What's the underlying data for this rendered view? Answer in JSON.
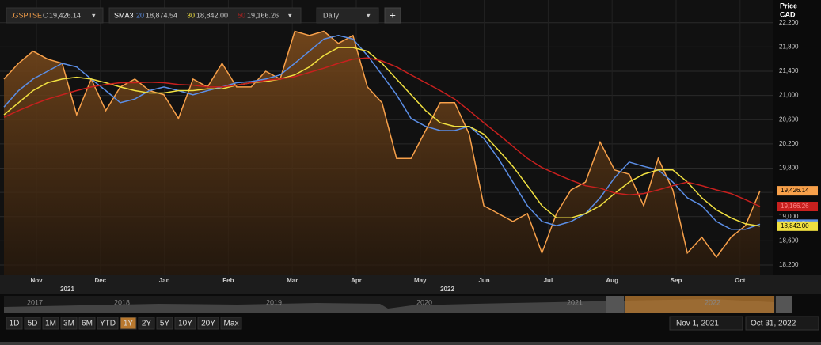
{
  "toolbar": {
    "symbol": ".GSPTSE",
    "price_code": "C",
    "price": "19,426.14",
    "study": "SMA3",
    "interval": "Daily",
    "add": "+"
  },
  "chart_data": {
    "type": "line",
    "y_axis_title": [
      "Price",
      "CAD"
    ],
    "months": [
      "Nov",
      "Dec",
      "Jan",
      "Feb",
      "Mar",
      "Apr",
      "May",
      "Jun",
      "Jul",
      "Aug",
      "Sep",
      "Oct"
    ],
    "years": [
      "2021",
      "2022"
    ],
    "ylim": [
      18030,
      22510
    ],
    "yticks": [
      {
        "value": 18200,
        "label": "18,200"
      },
      {
        "value": 18600,
        "label": "18,600"
      },
      {
        "value": 19000,
        "label": "19,000"
      },
      {
        "value": 19400,
        "label": "19,400"
      },
      {
        "value": 19800,
        "label": "19,800"
      },
      {
        "value": 20200,
        "label": "20,200"
      },
      {
        "value": 20600,
        "label": "20,600"
      },
      {
        "value": 21000,
        "label": "21,000"
      },
      {
        "value": 21400,
        "label": "21,400"
      },
      {
        "value": 21800,
        "label": "21,800"
      },
      {
        "value": 22200,
        "label": "22,200"
      }
    ],
    "series": [
      {
        "name": ".GSPTSE",
        "color": "#f7a04a",
        "area": true,
        "legend_value": "19,426.14",
        "values": [
          21270,
          21530,
          21730,
          21600,
          21530,
          20680,
          21270,
          20750,
          21140,
          21270,
          21080,
          21010,
          20620,
          21270,
          21140,
          21530,
          21140,
          21140,
          21400,
          21270,
          22060,
          21990,
          22060,
          21860,
          21990,
          21140,
          20880,
          19960,
          19960,
          20420,
          20880,
          20880,
          20360,
          19180,
          19050,
          18920,
          19050,
          18400,
          19050,
          19440,
          19570,
          20230,
          19770,
          19700,
          19180,
          19960,
          19440,
          18400,
          18660,
          18330,
          18660,
          18850,
          19426.14
        ]
      },
      {
        "name": "20",
        "color": "#5b8ee6",
        "legend_value": "18,874.54",
        "values": [
          20810,
          21080,
          21270,
          21400,
          21530,
          21470,
          21270,
          21080,
          20880,
          20940,
          21080,
          21140,
          21080,
          21010,
          21080,
          21140,
          21210,
          21230,
          21270,
          21340,
          21530,
          21730,
          21930,
          21990,
          21930,
          21660,
          21340,
          21010,
          20620,
          20490,
          20420,
          20420,
          20490,
          20290,
          19960,
          19570,
          19180,
          18920,
          18850,
          18920,
          19050,
          19310,
          19640,
          19900,
          19830,
          19770,
          19570,
          19310,
          19180,
          18920,
          18790,
          18790,
          18874.54
        ]
      },
      {
        "name": "30",
        "color": "#f0e040",
        "legend_value": "18,842.00",
        "values": [
          20680,
          20880,
          21080,
          21210,
          21270,
          21300,
          21270,
          21210,
          21140,
          21080,
          21040,
          21040,
          21080,
          21080,
          21110,
          21110,
          21170,
          21210,
          21230,
          21270,
          21340,
          21470,
          21660,
          21790,
          21790,
          21730,
          21530,
          21270,
          21010,
          20750,
          20550,
          20490,
          20490,
          20360,
          20100,
          19830,
          19510,
          19180,
          18980,
          18980,
          19050,
          19180,
          19380,
          19570,
          19700,
          19770,
          19770,
          19570,
          19310,
          19110,
          18980,
          18880,
          18842
        ]
      },
      {
        "name": "50",
        "color": "#c8201e",
        "legend_value": "19,166.26",
        "values": [
          20640,
          20750,
          20850,
          20940,
          21010,
          21080,
          21140,
          21180,
          21210,
          21210,
          21220,
          21210,
          21180,
          21170,
          21140,
          21140,
          21170,
          21210,
          21250,
          21270,
          21310,
          21380,
          21450,
          21530,
          21600,
          21620,
          21570,
          21470,
          21340,
          21210,
          21080,
          20940,
          20750,
          20550,
          20360,
          20160,
          19960,
          19810,
          19700,
          19600,
          19510,
          19470,
          19390,
          19360,
          19380,
          19440,
          19510,
          19570,
          19510,
          19440,
          19380,
          19280,
          19166.26
        ]
      }
    ]
  },
  "navigator": {
    "years": [
      "2017",
      "2018",
      "2019",
      "2020",
      "2021",
      "2022"
    ]
  },
  "ranges": {
    "buttons": [
      "1D",
      "5D",
      "1M",
      "3M",
      "6M",
      "YTD",
      "1Y",
      "2Y",
      "5Y",
      "10Y",
      "20Y",
      "Max"
    ],
    "selected": "1Y",
    "from": "Nov 1, 2021",
    "to": "Oct 31, 2022"
  }
}
